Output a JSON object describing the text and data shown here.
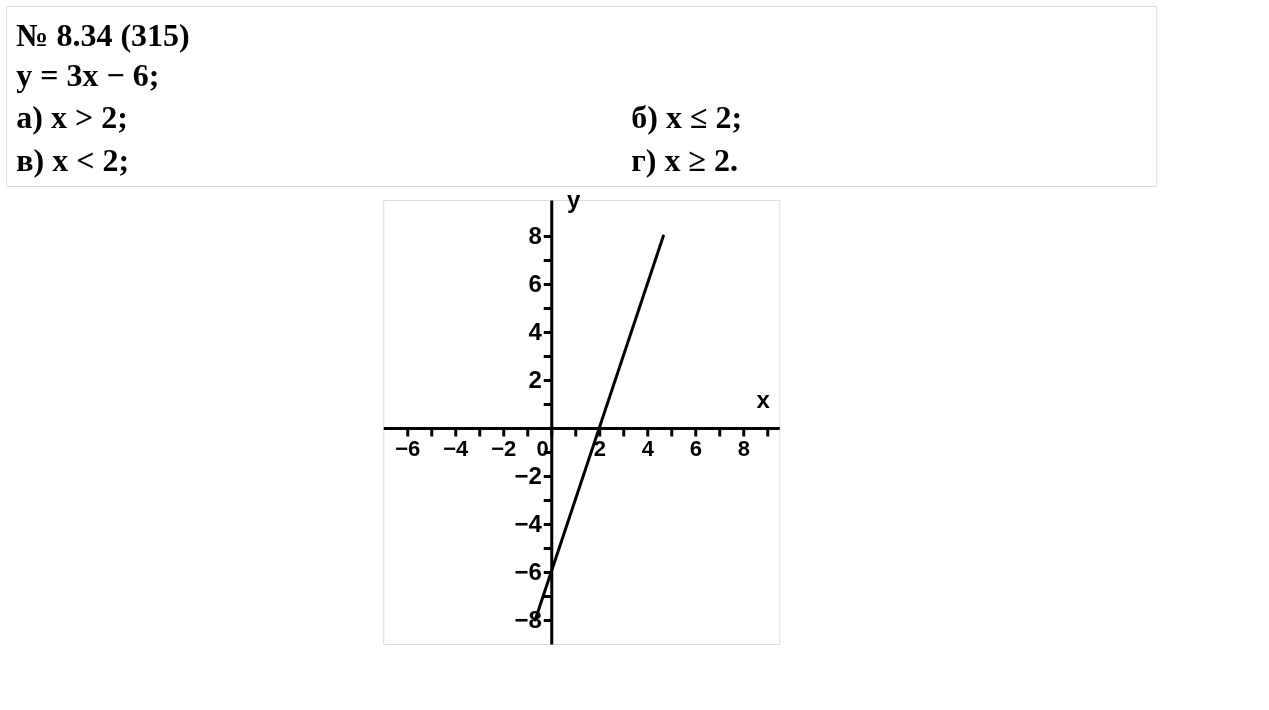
{
  "chart_data": {
    "type": "line",
    "title": "№ 8.34 (315)",
    "annotations": [
      "y = 3x − 6;",
      "а) x > 2;",
      "б) x ≤ 2;",
      "в) x < 2;",
      "г) x ≥ 2."
    ],
    "xlabel": "x",
    "ylabel": "y",
    "x": [
      -0.67,
      4.67
    ],
    "series": [
      {
        "color": "#000000",
        "values": [
          -8,
          8
        ]
      }
    ],
    "xlim": [
      -7,
      9.5
    ],
    "ylim": [
      -9,
      9.5
    ],
    "xticks": [
      -6,
      {
        "value": -5,
        "label": null
      },
      -4,
      {
        "value": -3,
        "label": null
      },
      -2,
      {
        "value": -1,
        "label": null
      },
      0,
      {
        "value": 1,
        "label": null
      },
      2,
      {
        "value": 3,
        "label": null
      },
      4,
      {
        "value": 5,
        "label": null
      },
      6,
      {
        "value": 7,
        "label": null
      },
      8,
      {
        "value": 9,
        "label": null
      }
    ],
    "yticks": [
      -8,
      {
        "value": -7,
        "label": null
      },
      -6,
      {
        "value": -5,
        "label": null
      },
      -4,
      {
        "value": -3,
        "label": null
      },
      -2,
      {
        "value": -1,
        "label": null
      },
      {
        "value": 1,
        "label": null
      },
      2,
      {
        "value": 3,
        "label": null
      },
      4,
      {
        "value": 5,
        "label": null
      },
      6,
      {
        "value": 7,
        "label": null
      },
      8
    ],
    "grid": false,
    "marker": "none",
    "line_style": "solid"
  }
}
